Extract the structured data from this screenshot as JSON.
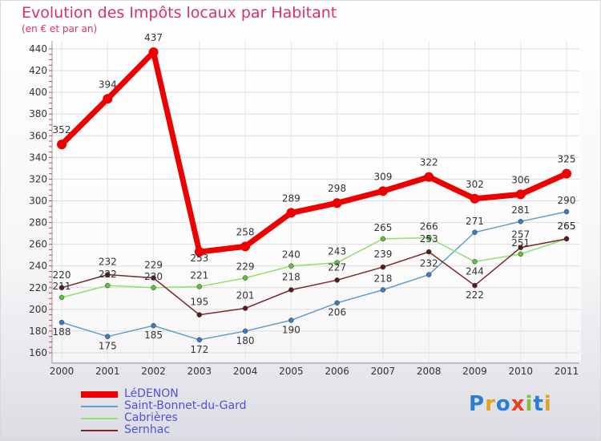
{
  "title": "Evolution des Impôts locaux par Habitant",
  "subtitle": "(en € et par an)",
  "logo": {
    "text": "Proxiti",
    "letters": [
      "P",
      "r",
      "o",
      "x",
      "i",
      "t",
      "i"
    ],
    "colors": [
      "#2a7fd4",
      "#e8a020",
      "#2a7fd4",
      "#e84020",
      "#80c040",
      "#2a7fd4",
      "#e8a020"
    ]
  },
  "chart_data": {
    "type": "line",
    "categories": [
      "2000",
      "2001",
      "2002",
      "2003",
      "2004",
      "2005",
      "2006",
      "2007",
      "2008",
      "2009",
      "2010",
      "2011"
    ],
    "ylim": [
      160,
      440
    ],
    "yticks": [
      160,
      180,
      200,
      220,
      240,
      260,
      280,
      300,
      320,
      340,
      360,
      380,
      400,
      420,
      440
    ],
    "xlabel": "",
    "ylabel": "",
    "grid": true,
    "legend_position": "bottom-left",
    "series": [
      {
        "name": "LéDENON",
        "color": "#ee0000",
        "width": 7,
        "marker": 6,
        "values": [
          352,
          394,
          437,
          253,
          258,
          289,
          298,
          309,
          322,
          302,
          306,
          325
        ],
        "labels": [
          "352",
          "394",
          "437",
          "253",
          "258",
          "289",
          "298",
          "309",
          "322",
          "302",
          "306",
          "325"
        ]
      },
      {
        "name": "Saint-Bonnet-du-Gard",
        "color": "#5f9fd0",
        "width": 1.5,
        "marker": 3,
        "values": [
          188,
          175,
          185,
          172,
          180,
          190,
          206,
          218,
          232,
          271,
          281,
          290
        ],
        "labels": [
          "188",
          "175",
          "185",
          "172",
          "180",
          "190",
          "206",
          "218",
          "232",
          "271",
          "281",
          "290"
        ]
      },
      {
        "name": "Cabrières",
        "color": "#90e070",
        "width": 1.5,
        "marker": 3,
        "values": [
          211,
          222,
          220,
          221,
          229,
          240,
          243,
          265,
          266,
          244,
          251,
          265
        ],
        "labels": [
          "211",
          "222",
          "220",
          "221",
          "229",
          "240",
          "243",
          "265",
          "266",
          "244",
          "251",
          "265"
        ]
      },
      {
        "name": "Sernhac",
        "color": "#7a2828",
        "width": 1.5,
        "marker": 3,
        "values": [
          220,
          232,
          229,
          195,
          201,
          218,
          227,
          239,
          253,
          222,
          257,
          265
        ],
        "labels": [
          "220",
          "232",
          "229",
          "195",
          "201",
          "218",
          "227",
          "239",
          "253",
          "222",
          "257",
          "265"
        ]
      }
    ]
  }
}
